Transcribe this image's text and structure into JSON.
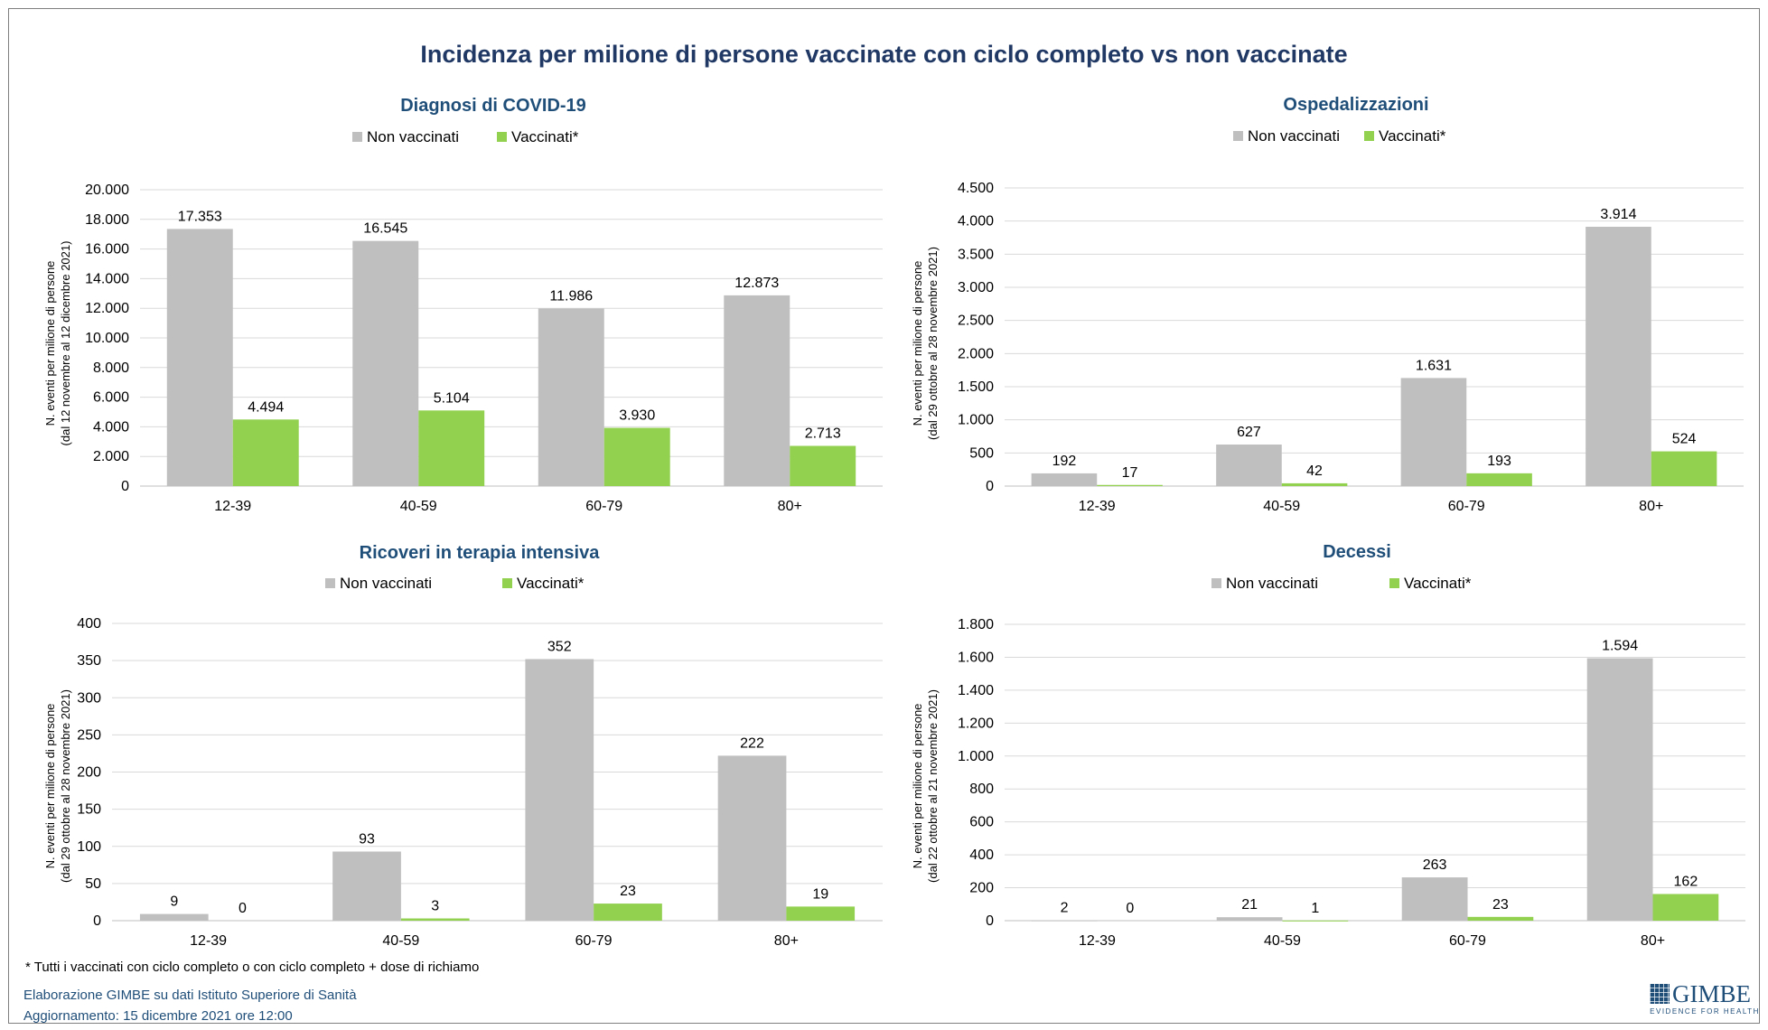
{
  "title": "Incidenza per milione di persone vaccinate con ciclo completo vs non vaccinate",
  "colors": {
    "non_vaccinati": "#bfbfbf",
    "vaccinati": "#92d050",
    "title": "#1f3864",
    "panel_title": "#1f4e79"
  },
  "chart_data": [
    {
      "type": "bar",
      "title": "Diagnosi di COVID-19",
      "ylabel": [
        "N. eventi per milione di persone",
        "(dal 12  novembre al 12  dicembre 2021)"
      ],
      "categories": [
        "12-39",
        "40-59",
        "60-79",
        "80+"
      ],
      "series": [
        {
          "name": "Non vaccinati",
          "values": [
            17353,
            16545,
            11986,
            12873
          ],
          "labels": [
            "17.353",
            "16.545",
            "11.986",
            "12.873"
          ]
        },
        {
          "name": "Vaccinati*",
          "values": [
            4494,
            5104,
            3930,
            2713
          ],
          "labels": [
            "4.494",
            "5.104",
            "3.930",
            "2.713"
          ]
        }
      ],
      "ylim": [
        0,
        20000
      ],
      "yticks": [
        0,
        2000,
        4000,
        6000,
        8000,
        10000,
        12000,
        14000,
        16000,
        18000,
        20000
      ],
      "ytick_labels": [
        "0",
        "2.000",
        "4.000",
        "6.000",
        "8.000",
        "10.000",
        "12.000",
        "14.000",
        "16.000",
        "18.000",
        "20.000"
      ],
      "grid": true,
      "legend": "top"
    },
    {
      "type": "bar",
      "title": "Ospedalizzazioni",
      "ylabel": [
        "N. eventi per milione di persone",
        "(dal 29  ottobre al 28  novembre 2021)"
      ],
      "categories": [
        "12-39",
        "40-59",
        "60-79",
        "80+"
      ],
      "series": [
        {
          "name": "Non vaccinati",
          "values": [
            192,
            627,
            1631,
            3914
          ],
          "labels": [
            "192",
            "627",
            "1.631",
            "3.914"
          ]
        },
        {
          "name": "Vaccinati*",
          "values": [
            17,
            42,
            193,
            524
          ],
          "labels": [
            "17",
            "42",
            "193",
            "524"
          ]
        }
      ],
      "ylim": [
        0,
        4500
      ],
      "yticks": [
        0,
        500,
        1000,
        1500,
        2000,
        2500,
        3000,
        3500,
        4000,
        4500
      ],
      "ytick_labels": [
        "0",
        "500",
        "1.000",
        "1.500",
        "2.000",
        "2.500",
        "3.000",
        "3.500",
        "4.000",
        "4.500"
      ],
      "grid": true,
      "legend": "top"
    },
    {
      "type": "bar",
      "title": "Ricoveri in terapia intensiva",
      "ylabel": [
        "N. eventi per milione di persone",
        "(dal 29  ottobre al 28  novembre 2021)"
      ],
      "categories": [
        "12-39",
        "40-59",
        "60-79",
        "80+"
      ],
      "series": [
        {
          "name": "Non vaccinati",
          "values": [
            9,
            93,
            352,
            222
          ],
          "labels": [
            "9",
            "93",
            "352",
            "222"
          ]
        },
        {
          "name": "Vaccinati*",
          "values": [
            0,
            3,
            23,
            19
          ],
          "labels": [
            "0",
            "3",
            "23",
            "19"
          ]
        }
      ],
      "ylim": [
        0,
        400
      ],
      "yticks": [
        0,
        50,
        100,
        150,
        200,
        250,
        300,
        350,
        400
      ],
      "ytick_labels": [
        "0",
        "50",
        "100",
        "150",
        "200",
        "250",
        "300",
        "350",
        "400"
      ],
      "grid": true,
      "legend": "top"
    },
    {
      "type": "bar",
      "title": "Decessi",
      "ylabel": [
        "N. eventi per milione di persone",
        "(dal 22  ottobre al 21  novembre 2021)"
      ],
      "categories": [
        "12-39",
        "40-59",
        "60-79",
        "80+"
      ],
      "series": [
        {
          "name": "Non vaccinati",
          "values": [
            2,
            21,
            263,
            1594
          ],
          "labels": [
            "2",
            "21",
            "263",
            "1.594"
          ]
        },
        {
          "name": "Vaccinati*",
          "values": [
            0,
            1,
            23,
            162
          ],
          "labels": [
            "0",
            "1",
            "23",
            "162"
          ]
        }
      ],
      "ylim": [
        0,
        1800
      ],
      "yticks": [
        0,
        200,
        400,
        600,
        800,
        1000,
        1200,
        1400,
        1600,
        1800
      ],
      "ytick_labels": [
        "0",
        "200",
        "400",
        "600",
        "800",
        "1.000",
        "1.200",
        "1.400",
        "1.600",
        "1.800"
      ],
      "grid": true,
      "legend": "top"
    }
  ],
  "footnote": "* Tutti i vaccinati con ciclo completo o con ciclo completo +  dose di richiamo",
  "source_line1": "Elaborazione GIMBE su dati Istituto Superiore di Sanità",
  "source_line2": "Aggiornamento: 15 dicembre 2021 ore 12:00",
  "logo": {
    "name": "GIMBE",
    "tagline": "EVIDENCE FOR HEALTH"
  }
}
